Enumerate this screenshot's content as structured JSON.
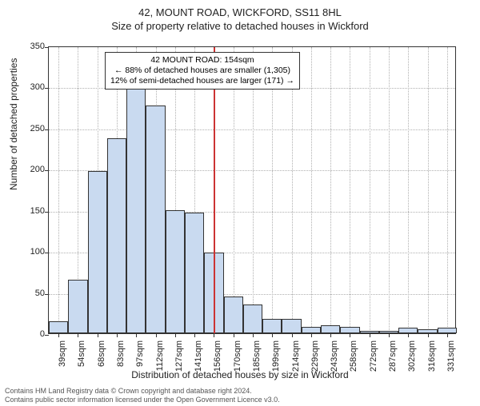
{
  "title": "42, MOUNT ROAD, WICKFORD, SS11 8HL",
  "subtitle": "Size of property relative to detached houses in Wickford",
  "xaxis_label": "Distribution of detached houses by size in Wickford",
  "yaxis_label": "Number of detached properties",
  "chart": {
    "type": "histogram",
    "background_color": "#ffffff",
    "grid_color": "#b0b0b0",
    "axis_color": "#333333",
    "bar_fill": "#c9daf0",
    "bar_border": "#333333",
    "marker_color": "#cc3333",
    "label_fontsize": 12,
    "tick_fontsize": 11,
    "ylim": [
      0,
      350
    ],
    "ytick_step": 50,
    "categories": [
      "39sqm",
      "54sqm",
      "68sqm",
      "83sqm",
      "97sqm",
      "112sqm",
      "127sqm",
      "141sqm",
      "156sqm",
      "170sqm",
      "185sqm",
      "199sqm",
      "214sqm",
      "229sqm",
      "243sqm",
      "258sqm",
      "272sqm",
      "287sqm",
      "302sqm",
      "316sqm",
      "331sqm"
    ],
    "values": [
      15,
      65,
      197,
      237,
      306,
      277,
      150,
      147,
      98,
      45,
      35,
      18,
      18,
      8,
      10,
      8,
      3,
      3,
      7,
      5,
      7
    ],
    "bar_width": 1.0,
    "marker_index": 8
  },
  "annotation": {
    "line1": "42 MOUNT ROAD: 154sqm",
    "line2": "← 88% of detached houses are smaller (1,305)",
    "line3": "12% of semi-detached houses are larger (171) →"
  },
  "footer": {
    "line1": "Contains HM Land Registry data © Crown copyright and database right 2024.",
    "line2": "Contains public sector information licensed under the Open Government Licence v3.0."
  }
}
